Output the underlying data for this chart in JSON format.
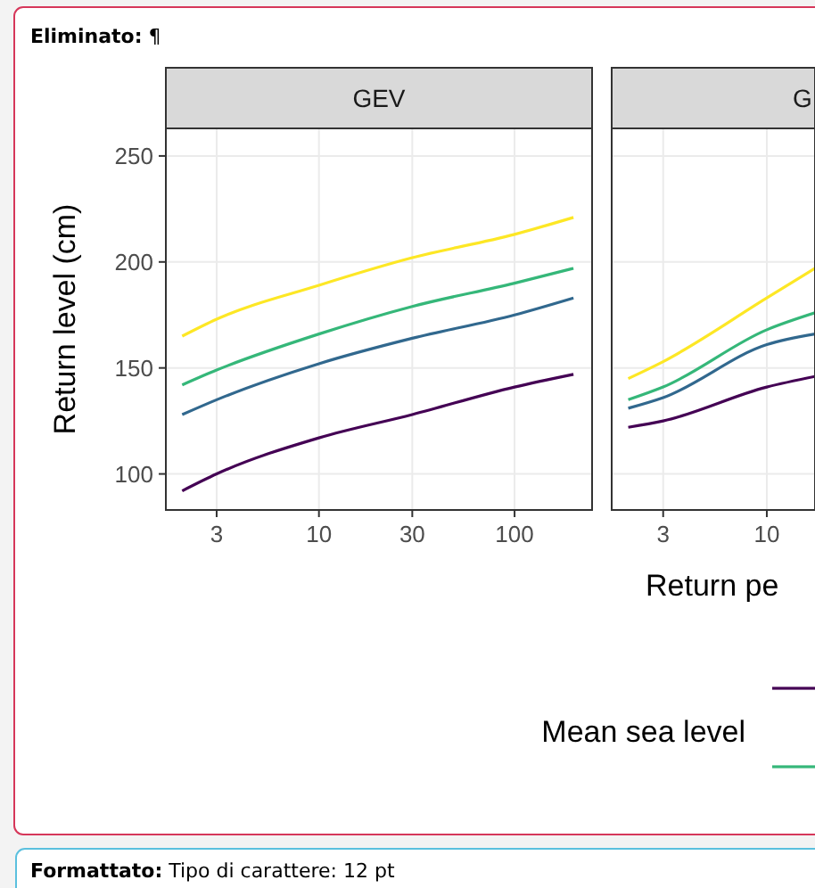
{
  "chart_data": [
    {
      "type": "line",
      "title": "GEV",
      "ylabel": "Return level (cm)",
      "legend_title": "Mean sea level",
      "log": "x",
      "grid": true,
      "xlim": [
        1.65,
        249
      ],
      "ylim": [
        83,
        263
      ],
      "xticks": [
        3,
        10,
        30,
        100
      ],
      "yticks": [
        100,
        150,
        200,
        250
      ],
      "x": [
        2,
        3,
        10,
        30,
        100,
        200
      ],
      "series": [
        {
          "color": "#440154",
          "values": [
            92,
            100,
            117,
            128,
            141,
            147
          ]
        },
        {
          "color": "#31688e",
          "values": [
            128,
            135,
            152,
            164,
            175,
            183
          ]
        },
        {
          "color": "#35b779",
          "values": [
            142,
            149,
            166,
            179,
            190,
            197
          ]
        },
        {
          "color": "#fde725",
          "values": [
            165,
            173,
            189,
            202,
            213,
            221
          ]
        }
      ],
      "annotations": [
        "Eliminato: ¶",
        "Formattato: Tipo di carattere: 12 pt"
      ]
    },
    {
      "type": "line",
      "title": "G",
      "xlabel": "Return pe",
      "log": "x",
      "grid": true,
      "tick_labels": "x",
      "xlim": [
        1.65,
        17.5
      ],
      "ylim": [
        83,
        263
      ],
      "xticks": [
        3,
        10
      ],
      "yticks": [
        100,
        150,
        200,
        250
      ],
      "x": [
        2,
        3,
        10,
        17.5
      ],
      "series": [
        {
          "color": "#440154",
          "values": [
            122,
            125,
            141,
            146
          ]
        },
        {
          "color": "#31688e",
          "values": [
            131,
            136,
            161,
            166
          ]
        },
        {
          "color": "#35b779",
          "values": [
            135,
            141,
            168,
            176
          ]
        },
        {
          "color": "#fde725",
          "values": [
            145,
            153,
            183,
            197
          ]
        }
      ]
    }
  ]
}
